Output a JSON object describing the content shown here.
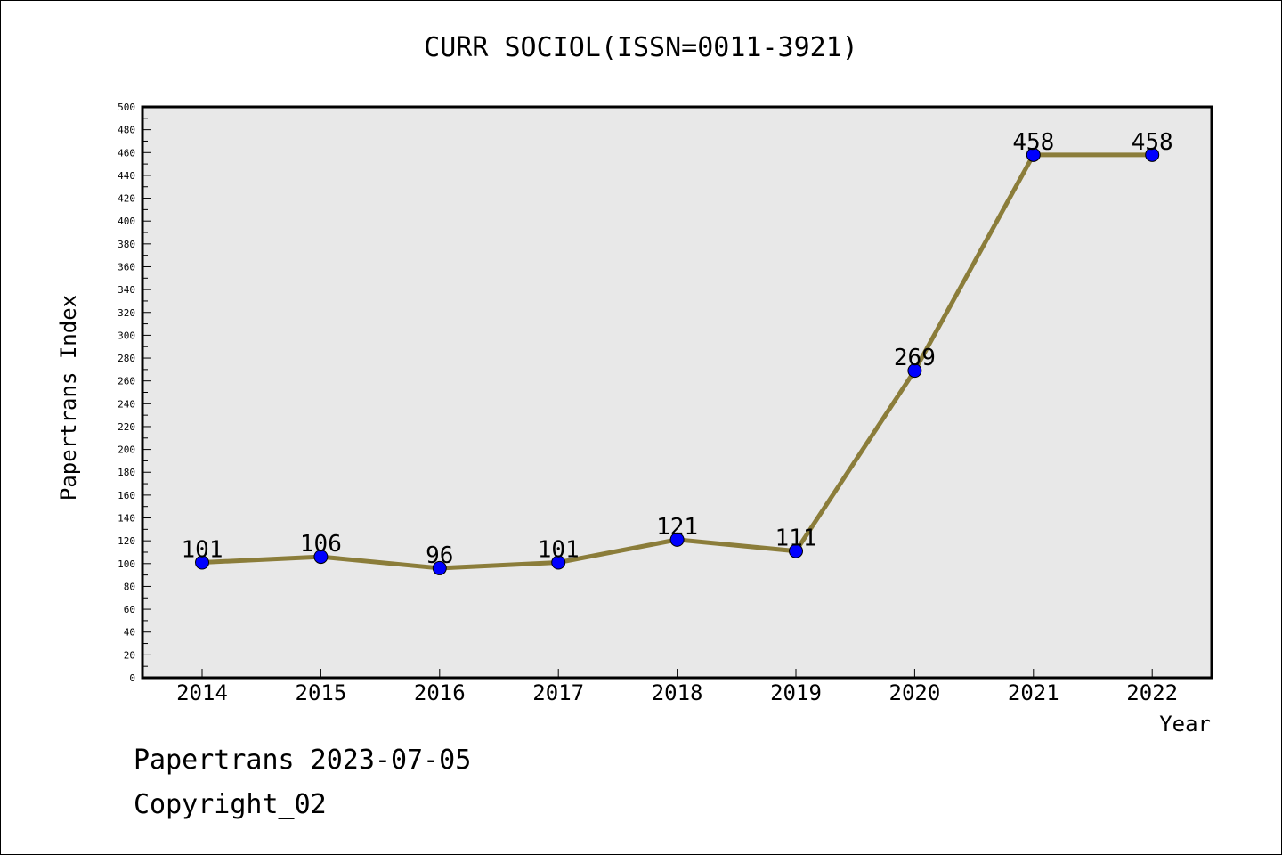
{
  "chart_data": {
    "type": "line",
    "title": "CURR SOCIOL(ISSN=0011-3921)",
    "xlabel": "Year",
    "ylabel": "Papertrans Index",
    "categories": [
      "2014",
      "2015",
      "2016",
      "2017",
      "2018",
      "2019",
      "2020",
      "2021",
      "2022"
    ],
    "series": [
      {
        "values": [
          101,
          106,
          96,
          101,
          121,
          111,
          269,
          458,
          458
        ],
        "line_color": "#8b7d3a",
        "marker_color": "#0000ff"
      }
    ],
    "data_labels": [
      "101",
      "106",
      "96",
      "101",
      "121",
      "111",
      "269",
      "458",
      "458"
    ],
    "ylim": [
      0,
      500
    ],
    "y_ticks": [
      0,
      20,
      40,
      60,
      80,
      100,
      120,
      140,
      160,
      180,
      200,
      220,
      240,
      260,
      280,
      300,
      320,
      340,
      360,
      380,
      400,
      420,
      440,
      460,
      480,
      500
    ],
    "plot_background": "#e8e8e8",
    "grid": false,
    "legend": "none"
  },
  "footer": {
    "line1": "Papertrans 2023-07-05",
    "line2": "Copyright_02"
  }
}
